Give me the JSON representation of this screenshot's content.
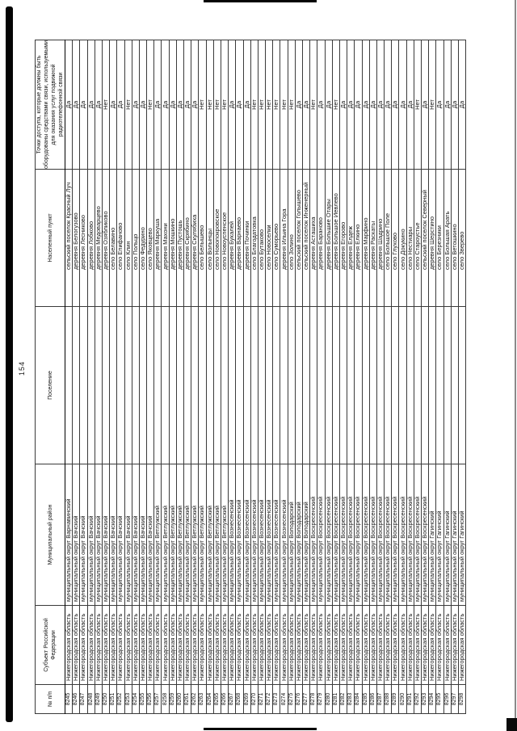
{
  "page": {
    "number": "154"
  },
  "table": {
    "columns": [
      {
        "key": "num",
        "label": "№ п/п"
      },
      {
        "key": "subject",
        "label": "Субъект Российской Федерации"
      },
      {
        "key": "district",
        "label": "Муниципальный район"
      },
      {
        "key": "settlement",
        "label": "Поселение"
      },
      {
        "key": "locality",
        "label": "Населенный пункт"
      },
      {
        "key": "access",
        "label": "Точки доступа, которые должны быть оборудованы средствами связи, используемыми для оказания услуг подвижной радиотелефонной связи"
      }
    ],
    "rows": [
      {
        "num": "8245",
        "subject": "Нижегородская область",
        "district": "муниципальный округ Варнавинский",
        "settlement": "",
        "locality": "сельский поселок Красный Луч",
        "access": "Да"
      },
      {
        "num": "8246",
        "subject": "Нижегородская область",
        "district": "муниципальный округ Вачский",
        "settlement": "",
        "locality": "деревня Белогузово",
        "access": "Да"
      },
      {
        "num": "8247",
        "subject": "Нижегородская область",
        "district": "муниципальный округ Вачский",
        "settlement": "",
        "locality": "деревня Лесниково",
        "access": "Да"
      },
      {
        "num": "8248",
        "subject": "Нижегородская область",
        "district": "муниципальный округ Вачский",
        "settlement": "",
        "locality": "деревня Лобково",
        "access": "Да"
      },
      {
        "num": "8249",
        "subject": "Нижегородская область",
        "district": "муниципальный округ Вачский",
        "settlement": "",
        "locality": "деревня Медоварцево",
        "access": "Да"
      },
      {
        "num": "8250",
        "subject": "Нижегородская область",
        "district": "муниципальный округ Вачский",
        "settlement": "",
        "locality": "деревня Озябликово",
        "access": "Нет"
      },
      {
        "num": "8251",
        "subject": "Нижегородская область",
        "district": "муниципальный округ Вачский",
        "settlement": "",
        "locality": "село Белавино",
        "access": "Да"
      },
      {
        "num": "8252",
        "subject": "Нижегородская область",
        "district": "муниципальный округ Вачский",
        "settlement": "",
        "locality": "село Епифаново",
        "access": "Да"
      },
      {
        "num": "8253",
        "subject": "Нижегородская область",
        "district": "муниципальный округ Вачский",
        "settlement": "",
        "locality": "село Клин",
        "access": "Нет"
      },
      {
        "num": "8254",
        "subject": "Нижегородская область",
        "district": "муниципальный округ Вачский",
        "settlement": "",
        "locality": "село Польцо",
        "access": "Да"
      },
      {
        "num": "8255",
        "subject": "Нижегородская область",
        "district": "муниципальный округ Вачский",
        "settlement": "",
        "locality": "село Федурино",
        "access": "Да"
      },
      {
        "num": "8256",
        "subject": "Нижегородская область",
        "district": "муниципальный округ Вачский",
        "settlement": "",
        "locality": "село Яковцево",
        "access": "Нет"
      },
      {
        "num": "8257",
        "subject": "Нижегородская область",
        "district": "муниципальный округ Ветлужский",
        "settlement": "",
        "locality": "деревня Маркуша",
        "access": "Да"
      },
      {
        "num": "8258",
        "subject": "Нижегородская область",
        "district": "муниципальный округ Ветлужский",
        "settlement": "",
        "locality": "деревня Махони",
        "access": "Да"
      },
      {
        "num": "8259",
        "subject": "Нижегородская область",
        "district": "муниципальный округ Ветлужский",
        "settlement": "",
        "locality": "деревня Мошкино",
        "access": "Да"
      },
      {
        "num": "8260",
        "subject": "Нижегородская область",
        "district": "муниципальный округ Ветлужский",
        "settlement": "",
        "locality": "деревня Пустошь",
        "access": "Да"
      },
      {
        "num": "8261",
        "subject": "Нижегородская область",
        "district": "муниципальный округ Ветлужский",
        "settlement": "",
        "locality": "деревня Скрябино",
        "access": "Да"
      },
      {
        "num": "8262",
        "subject": "Нижегородская область",
        "district": "муниципальный округ Ветлужский",
        "settlement": "",
        "locality": "деревня Скулябиха",
        "access": "Да"
      },
      {
        "num": "8263",
        "subject": "Нижегородская область",
        "district": "муниципальный округ Ветлужский",
        "settlement": "",
        "locality": "село Белышево",
        "access": "Нет"
      },
      {
        "num": "8264",
        "subject": "Нижегородская область",
        "district": "муниципальный округ Ветлужский",
        "settlement": "",
        "locality": "село Волынцы",
        "access": "Нет"
      },
      {
        "num": "8265",
        "subject": "Нижегородская область",
        "district": "муниципальный округ Ветлужский",
        "settlement": "",
        "locality": "село Новопокровское",
        "access": "Нет"
      },
      {
        "num": "8266",
        "subject": "Нижегородская область",
        "district": "муниципальный округ Ветлужский",
        "settlement": "",
        "locality": "село Новоуспенское",
        "access": "Нет"
      },
      {
        "num": "8267",
        "subject": "Нижегородская область",
        "district": "муниципальный округ Вознесенский",
        "settlement": "",
        "locality": "деревня Букалей",
        "access": "Да"
      },
      {
        "num": "8268",
        "subject": "Нижегородская область",
        "district": "муниципальный округ Вознесенский",
        "settlement": "",
        "locality": "деревня Варнаево",
        "access": "Да"
      },
      {
        "num": "8269",
        "subject": "Нижегородская область",
        "district": "муниципальный округ Вознесенский",
        "settlement": "",
        "locality": "деревня Починки",
        "access": "Да"
      },
      {
        "num": "8270",
        "subject": "Нижегородская область",
        "district": "муниципальный округ Вознесенский",
        "settlement": "",
        "locality": "село Благодатовка",
        "access": "Нет"
      },
      {
        "num": "8271",
        "subject": "Нижегородская область",
        "district": "муниципальный округ Вознесенский",
        "settlement": "",
        "locality": "село Бутаково",
        "access": "Нет"
      },
      {
        "num": "8272",
        "subject": "Нижегородская область",
        "district": "муниципальный округ Вознесенский",
        "settlement": "",
        "locality": "село Новоселки",
        "access": "Нет"
      },
      {
        "num": "8273",
        "subject": "Нижегородская область",
        "district": "муниципальный округ Вознесенский",
        "settlement": "",
        "locality": "село Суморьево",
        "access": "Нет"
      },
      {
        "num": "8274",
        "subject": "Нижегородская область",
        "district": "муниципальный округ Вознесенский",
        "settlement": "",
        "locality": "деревня Ильина Гора",
        "access": "Нет"
      },
      {
        "num": "8275",
        "subject": "Нижегородская область",
        "district": "муниципальный округ Володарский",
        "settlement": "",
        "locality": "село Золино",
        "access": "Нет"
      },
      {
        "num": "8276",
        "subject": "Нижегородская область",
        "district": "муниципальный округ Володарский",
        "settlement": "",
        "locality": "сельский поселок Голышево",
        "access": "Да"
      },
      {
        "num": "8277",
        "subject": "Нижегородская область",
        "district": "муниципальный округ Володарский",
        "settlement": "",
        "locality": "сельский поселок Инженерный",
        "access": "Да"
      },
      {
        "num": "8278",
        "subject": "Нижегородская область",
        "district": "муниципальный округ Воскресенский",
        "settlement": "",
        "locality": "деревня Асташиха",
        "access": "Нет"
      },
      {
        "num": "8279",
        "subject": "Нижегородская область",
        "district": "муниципальный округ Воскресенский",
        "settlement": "",
        "locality": "деревня Бараново",
        "access": "Да"
      },
      {
        "num": "8280",
        "subject": "Нижегородская область",
        "district": "муниципальный округ Воскресенский",
        "settlement": "",
        "locality": "деревня Большие Отары",
        "access": "Да"
      },
      {
        "num": "8281",
        "subject": "Нижегородская область",
        "district": "муниципальный округ Воскресенский",
        "settlement": "",
        "locality": "деревня Большое Иевлево",
        "access": "Нет"
      },
      {
        "num": "8282",
        "subject": "Нижегородская область",
        "district": "муниципальный округ Воскресенский",
        "settlement": "",
        "locality": "деревня Егорово",
        "access": "Да"
      },
      {
        "num": "8283",
        "subject": "Нижегородская область",
        "district": "муниципальный округ Воскресенский",
        "settlement": "",
        "locality": "деревня Елдеж",
        "access": "Да"
      },
      {
        "num": "8284",
        "subject": "Нижегородская область",
        "district": "муниципальный округ Воскресенский",
        "settlement": "",
        "locality": "деревня Елкино",
        "access": "Да"
      },
      {
        "num": "8285",
        "subject": "Нижегородская область",
        "district": "муниципальный округ Воскресенский",
        "settlement": "",
        "locality": "деревня Марфино",
        "access": "Да"
      },
      {
        "num": "8286",
        "subject": "Нижегородская область",
        "district": "муниципальный округ Воскресенский",
        "settlement": "",
        "locality": "деревня Раскаты",
        "access": "Да"
      },
      {
        "num": "8287",
        "subject": "Нижегородская область",
        "district": "муниципальный округ Воскресенский",
        "settlement": "",
        "locality": "деревня Шадрино",
        "access": "Да"
      },
      {
        "num": "8288",
        "subject": "Нижегородская область",
        "district": "муниципальный округ Воскресенский",
        "settlement": "",
        "locality": "село Большое Поле",
        "access": "Да"
      },
      {
        "num": "8289",
        "subject": "Нижегородская область",
        "district": "муниципальный округ Воскресенский",
        "settlement": "",
        "locality": "село Глухово",
        "access": "Да"
      },
      {
        "num": "8290",
        "subject": "Нижегородская область",
        "district": "муниципальный округ Воскресенский",
        "settlement": "",
        "locality": "село Докукино",
        "access": "Да"
      },
      {
        "num": "8291",
        "subject": "Нижегородская область",
        "district": "муниципальный округ Воскресенский",
        "settlement": "",
        "locality": "село Нестиары",
        "access": "Да"
      },
      {
        "num": "8292",
        "subject": "Нижегородская область",
        "district": "муниципальный округ Воскресенский",
        "settlement": "",
        "locality": "село Староустье",
        "access": "Нет"
      },
      {
        "num": "8293",
        "subject": "Нижегородская область",
        "district": "муниципальный округ Воскресенский",
        "settlement": "",
        "locality": "сельский поселок Северный",
        "access": "Да"
      },
      {
        "num": "8294",
        "subject": "Нижегородская область",
        "district": "муниципальный округ Гагинский",
        "settlement": "",
        "locality": "деревня Шерстино",
        "access": "Нет"
      },
      {
        "num": "8295",
        "subject": "Нижегородская область",
        "district": "муниципальный округ Гагинский",
        "settlement": "",
        "locality": "село Березники",
        "access": "Да"
      },
      {
        "num": "8296",
        "subject": "Нижегородская область",
        "district": "муниципальный округ Гагинский",
        "settlement": "",
        "locality": "село Большая Арать",
        "access": "Да"
      },
      {
        "num": "8297",
        "subject": "Нижегородская область",
        "district": "муниципальный округ Гагинский",
        "settlement": "",
        "locality": "село Ветошкино",
        "access": "Да"
      },
      {
        "num": "8298",
        "subject": "Нижегородская область",
        "district": "муниципальный округ Гагинский",
        "settlement": "",
        "locality": "село Зверево",
        "access": "Да"
      }
    ]
  }
}
